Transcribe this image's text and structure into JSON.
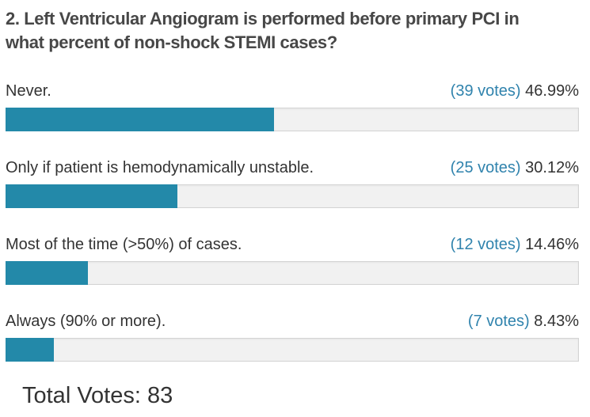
{
  "poll": {
    "title_line1": "2. Left Ventricular Angiogram is performed before primary PCI in",
    "title_line2": "what percent of non-shock STEMI cases?",
    "options": [
      {
        "label": "Never.",
        "votes_label": "(39 votes)",
        "percent_label": "46.99%",
        "percent": 46.99
      },
      {
        "label": "Only if patient is hemodynamically unstable.",
        "votes_label": "(25 votes)",
        "percent_label": "30.12%",
        "percent": 30.12
      },
      {
        "label": "Most of the time (>50%) of cases.",
        "votes_label": "(12 votes)",
        "percent_label": "14.46%",
        "percent": 14.46
      },
      {
        "label": "Always (90% or more).",
        "votes_label": "(7 votes)",
        "percent_label": "8.43%",
        "percent": 8.43
      }
    ],
    "total_label": "Total Votes: 83"
  },
  "colors": {
    "bar_fill": "#2389a9",
    "votes_text": "#3083ad",
    "label_text": "#333333",
    "title_text": "#474747",
    "track_bg": "#f1f1f1",
    "track_border": "#d3d3d3"
  },
  "chart_data": {
    "type": "bar",
    "orientation": "horizontal",
    "title": "2. Left Ventricular Angiogram is performed before primary PCI in what percent of non-shock STEMI cases?",
    "categories": [
      "Never.",
      "Only if patient is hemodynamically unstable.",
      "Most of the time (>50%) of cases.",
      "Always (90% or more)."
    ],
    "values": [
      46.99,
      30.12,
      14.46,
      8.43
    ],
    "votes": [
      39,
      25,
      12,
      7
    ],
    "total_votes": 83,
    "value_unit": "percent",
    "xlim": [
      0,
      100
    ],
    "grid": false,
    "legend": false,
    "bar_color": "#2389a9"
  }
}
